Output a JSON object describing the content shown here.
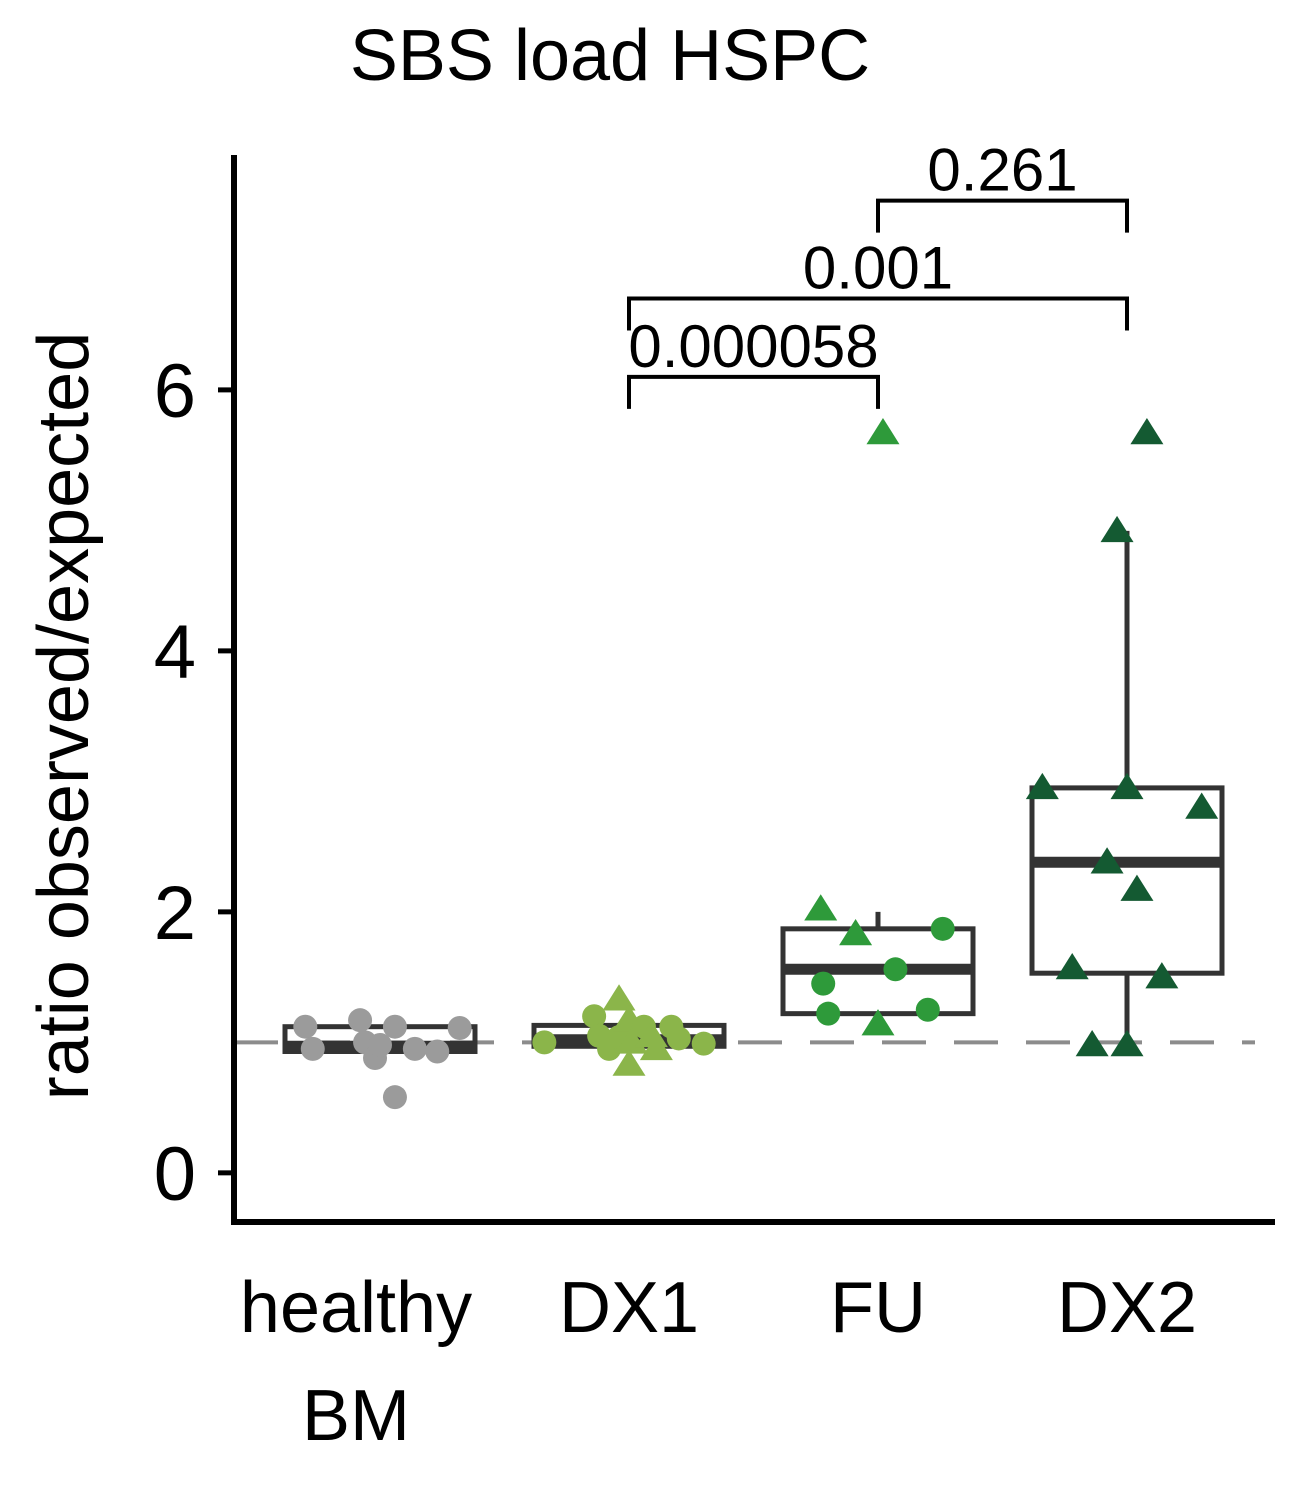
{
  "chart_data": {
    "type": "box",
    "title": "SBS load HSPC",
    "xlabel": "",
    "ylabel": "ratio observed/expected",
    "ylim": [
      -0.3,
      7.8
    ],
    "yticks": [
      0,
      2,
      4,
      6
    ],
    "reference_line": 1.0,
    "grid": false,
    "legend": "none",
    "categories": [
      {
        "lines": [
          "healthy",
          "BM"
        ],
        "color": "#9b9b9b"
      },
      {
        "lines": [
          "DX1"
        ],
        "color": "#8bb54a"
      },
      {
        "lines": [
          "FU"
        ],
        "color": "#2e9a3a"
      },
      {
        "lines": [
          "DX2"
        ],
        "color": "#145a32"
      }
    ],
    "boxes": [
      {
        "q1": 0.93,
        "median": 0.97,
        "q3": 1.12,
        "whisker_low": 0.93,
        "whisker_high": 1.12
      },
      {
        "q1": 0.97,
        "median": 1.02,
        "q3": 1.13,
        "whisker_low": 0.97,
        "whisker_high": 1.13
      },
      {
        "q1": 1.22,
        "median": 1.56,
        "q3": 1.87,
        "whisker_low": 1.22,
        "whisker_high": 2.0
      },
      {
        "q1": 1.53,
        "median": 2.38,
        "q3": 2.95,
        "whisker_low": 0.98,
        "whisker_high": 4.92
      }
    ],
    "points": [
      {
        "group": 0,
        "y": 1.12,
        "jitter": -0.3,
        "shape": "circle"
      },
      {
        "group": 0,
        "y": 0.95,
        "jitter": -0.27,
        "shape": "circle"
      },
      {
        "group": 0,
        "y": 1.17,
        "jitter": -0.08,
        "shape": "circle"
      },
      {
        "group": 0,
        "y": 1.0,
        "jitter": -0.06,
        "shape": "circle"
      },
      {
        "group": 0,
        "y": 0.88,
        "jitter": -0.02,
        "shape": "circle"
      },
      {
        "group": 0,
        "y": 0.98,
        "jitter": 0.0,
        "shape": "circle"
      },
      {
        "group": 0,
        "y": 1.12,
        "jitter": 0.06,
        "shape": "circle"
      },
      {
        "group": 0,
        "y": 0.95,
        "jitter": 0.14,
        "shape": "circle"
      },
      {
        "group": 0,
        "y": 0.93,
        "jitter": 0.23,
        "shape": "circle"
      },
      {
        "group": 0,
        "y": 1.11,
        "jitter": 0.32,
        "shape": "circle"
      },
      {
        "group": 0,
        "y": 0.58,
        "jitter": 0.06,
        "shape": "circle"
      },
      {
        "group": 1,
        "y": 1.0,
        "jitter": -0.34,
        "shape": "circle"
      },
      {
        "group": 1,
        "y": 1.2,
        "jitter": -0.14,
        "shape": "circle"
      },
      {
        "group": 1,
        "y": 1.05,
        "jitter": -0.12,
        "shape": "circle"
      },
      {
        "group": 1,
        "y": 0.95,
        "jitter": -0.08,
        "shape": "circle"
      },
      {
        "group": 1,
        "y": 1.04,
        "jitter": -0.04,
        "shape": "circle"
      },
      {
        "group": 1,
        "y": 1.33,
        "jitter": -0.04,
        "shape": "triangle"
      },
      {
        "group": 1,
        "y": 1.17,
        "jitter": 0.0,
        "shape": "triangle"
      },
      {
        "group": 1,
        "y": 1.0,
        "jitter": 0.01,
        "shape": "triangle"
      },
      {
        "group": 1,
        "y": 0.83,
        "jitter": 0.0,
        "shape": "triangle"
      },
      {
        "group": 1,
        "y": 1.12,
        "jitter": 0.06,
        "shape": "circle"
      },
      {
        "group": 1,
        "y": 1.05,
        "jitter": 0.09,
        "shape": "triangle"
      },
      {
        "group": 1,
        "y": 0.95,
        "jitter": 0.11,
        "shape": "triangle"
      },
      {
        "group": 1,
        "y": 1.12,
        "jitter": 0.17,
        "shape": "circle"
      },
      {
        "group": 1,
        "y": 1.03,
        "jitter": 0.2,
        "shape": "circle"
      },
      {
        "group": 1,
        "y": 0.99,
        "jitter": 0.3,
        "shape": "circle"
      },
      {
        "group": 2,
        "y": 5.67,
        "jitter": 0.02,
        "shape": "triangle"
      },
      {
        "group": 2,
        "y": 2.02,
        "jitter": -0.23,
        "shape": "triangle"
      },
      {
        "group": 2,
        "y": 1.83,
        "jitter": -0.09,
        "shape": "triangle"
      },
      {
        "group": 2,
        "y": 1.87,
        "jitter": 0.26,
        "shape": "circle"
      },
      {
        "group": 2,
        "y": 1.56,
        "jitter": 0.07,
        "shape": "circle"
      },
      {
        "group": 2,
        "y": 1.45,
        "jitter": -0.22,
        "shape": "circle"
      },
      {
        "group": 2,
        "y": 1.22,
        "jitter": -0.2,
        "shape": "circle"
      },
      {
        "group": 2,
        "y": 1.25,
        "jitter": 0.2,
        "shape": "circle"
      },
      {
        "group": 2,
        "y": 1.14,
        "jitter": 0.0,
        "shape": "triangle"
      },
      {
        "group": 3,
        "y": 5.67,
        "jitter": 0.08,
        "shape": "triangle"
      },
      {
        "group": 3,
        "y": 4.92,
        "jitter": -0.04,
        "shape": "triangle"
      },
      {
        "group": 3,
        "y": 2.95,
        "jitter": -0.34,
        "shape": "triangle"
      },
      {
        "group": 3,
        "y": 2.95,
        "jitter": 0.0,
        "shape": "triangle"
      },
      {
        "group": 3,
        "y": 2.8,
        "jitter": 0.3,
        "shape": "triangle"
      },
      {
        "group": 3,
        "y": 2.38,
        "jitter": -0.08,
        "shape": "triangle"
      },
      {
        "group": 3,
        "y": 2.17,
        "jitter": 0.04,
        "shape": "triangle"
      },
      {
        "group": 3,
        "y": 1.57,
        "jitter": -0.22,
        "shape": "triangle"
      },
      {
        "group": 3,
        "y": 1.5,
        "jitter": 0.14,
        "shape": "triangle"
      },
      {
        "group": 3,
        "y": 0.98,
        "jitter": -0.14,
        "shape": "triangle"
      },
      {
        "group": 3,
        "y": 0.98,
        "jitter": 0.0,
        "shape": "triangle"
      }
    ],
    "comparisons": [
      {
        "from": 1,
        "to": 2,
        "label": "0.000058",
        "y": 6.1
      },
      {
        "from": 1,
        "to": 3,
        "label": "0.001",
        "y": 6.7
      },
      {
        "from": 2,
        "to": 3,
        "label": "0.261",
        "y": 7.45
      }
    ]
  }
}
